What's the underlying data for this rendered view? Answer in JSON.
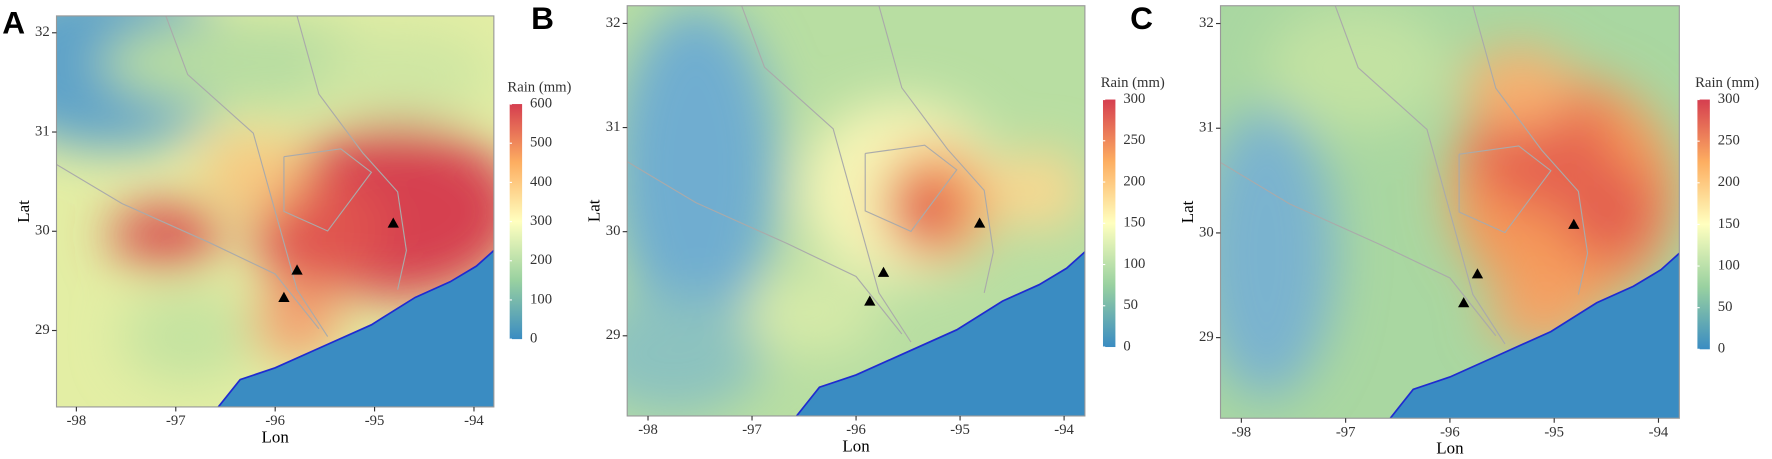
{
  "maps": [
    {
      "label": "A",
      "xlabel": "Lon",
      "ylabel": "Lat",
      "xlim": [
        -98.2,
        -93.8
      ],
      "ylim": [
        28.23,
        32.17
      ],
      "xticks": [
        -98,
        -97,
        -96,
        -95,
        -94
      ],
      "yticks": [
        29,
        30,
        31,
        32
      ],
      "colorbar": {
        "title": "Rain (mm)",
        "lim": [
          0,
          600
        ],
        "ticks": [
          0,
          100,
          200,
          300,
          400,
          500,
          600
        ]
      }
    },
    {
      "label": "B",
      "xlabel": "Lon",
      "ylabel": "Lat",
      "xlim": [
        -98.2,
        -93.8
      ],
      "ylim": [
        28.23,
        32.17
      ],
      "xticks": [
        -98,
        -97,
        -96,
        -95,
        -94
      ],
      "yticks": [
        29,
        30,
        31,
        32
      ],
      "colorbar": {
        "title": "Rain (mm)",
        "lim": [
          0,
          300
        ],
        "ticks": [
          0,
          50,
          100,
          150,
          200,
          250,
          300
        ]
      }
    },
    {
      "label": "C",
      "xlabel": "Lon",
      "ylabel": "Lat",
      "xlim": [
        -98.2,
        -93.8
      ],
      "ylim": [
        28.23,
        32.17
      ],
      "xticks": [
        -98,
        -97,
        -96,
        -95,
        -94
      ],
      "yticks": [
        29,
        30,
        31,
        32
      ],
      "colorbar": {
        "title": "Rain (mm)",
        "lim": [
          0,
          300
        ],
        "ticks": [
          0,
          50,
          100,
          150,
          200,
          250,
          300
        ]
      }
    }
  ]
}
